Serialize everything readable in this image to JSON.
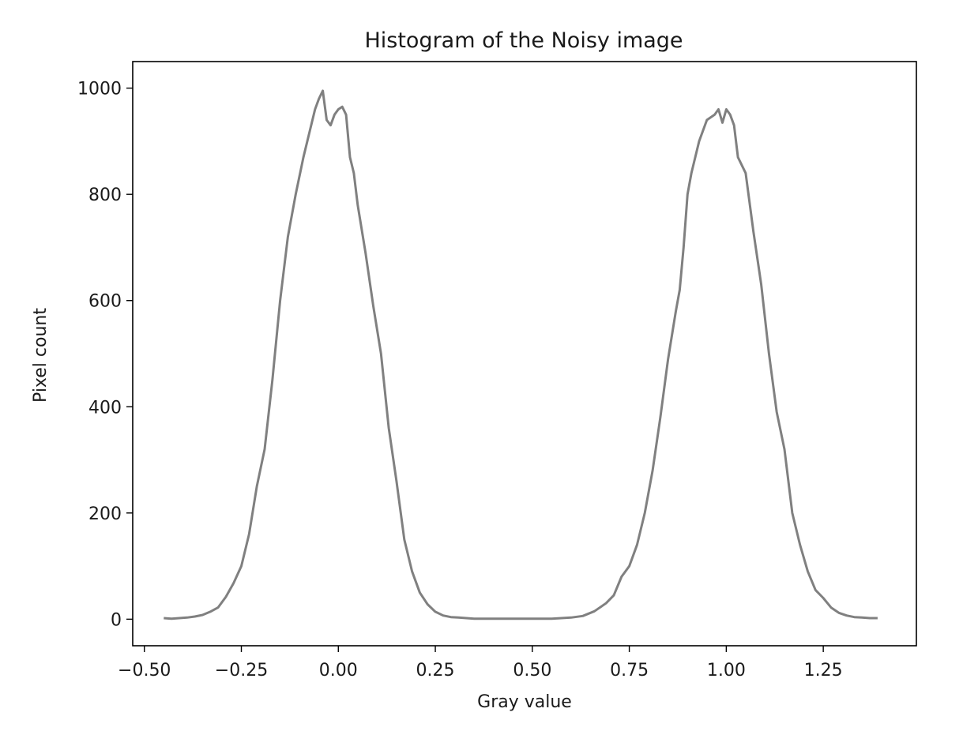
{
  "chart_data": {
    "type": "line",
    "title": "Histogram of the Noisy image",
    "xlabel": "Gray value",
    "ylabel": "Pixel count",
    "xlim": [
      -0.53,
      1.49
    ],
    "ylim": [
      -50,
      1050
    ],
    "grid": false,
    "line_color": "#808080",
    "xticks": [
      -0.5,
      -0.25,
      0.0,
      0.25,
      0.5,
      0.75,
      1.0,
      1.25
    ],
    "xtick_labels": [
      "−0.50",
      "−0.25",
      "0.00",
      "0.25",
      "0.50",
      "0.75",
      "1.00",
      "1.25"
    ],
    "yticks": [
      0,
      200,
      400,
      600,
      800,
      1000
    ],
    "ytick_labels": [
      "0",
      "200",
      "400",
      "600",
      "800",
      "1000"
    ],
    "series": [
      {
        "x": [
          -0.45,
          -0.43,
          -0.41,
          -0.39,
          -0.37,
          -0.35,
          -0.33,
          -0.31,
          -0.29,
          -0.27,
          -0.25,
          -0.23,
          -0.21,
          -0.19,
          -0.17,
          -0.15,
          -0.13,
          -0.11,
          -0.09,
          -0.08,
          -0.07,
          -0.06,
          -0.05,
          -0.04,
          -0.03,
          -0.02,
          -0.01,
          0.0,
          0.01,
          0.02,
          0.03,
          0.04,
          0.05,
          0.07,
          0.09,
          0.11,
          0.13,
          0.15,
          0.17,
          0.19,
          0.21,
          0.23,
          0.25,
          0.27,
          0.29,
          0.31,
          0.35,
          0.4,
          0.45,
          0.5,
          0.55,
          0.6,
          0.63,
          0.66,
          0.69,
          0.71,
          0.73,
          0.75,
          0.77,
          0.79,
          0.81,
          0.83,
          0.85,
          0.87,
          0.88,
          0.89,
          0.9,
          0.91,
          0.93,
          0.95,
          0.97,
          0.98,
          0.99,
          1.0,
          1.01,
          1.02,
          1.03,
          1.05,
          1.07,
          1.09,
          1.11,
          1.13,
          1.15,
          1.17,
          1.19,
          1.21,
          1.23,
          1.25,
          1.27,
          1.29,
          1.31,
          1.33,
          1.35,
          1.37,
          1.39
        ],
        "y": [
          2,
          1,
          2,
          3,
          5,
          8,
          14,
          22,
          42,
          68,
          100,
          160,
          250,
          320,
          450,
          600,
          720,
          800,
          870,
          900,
          930,
          960,
          980,
          995,
          940,
          930,
          950,
          960,
          965,
          950,
          870,
          840,
          780,
          690,
          590,
          500,
          360,
          260,
          150,
          90,
          50,
          28,
          14,
          7,
          4,
          3,
          1,
          1,
          1,
          1,
          1,
          3,
          6,
          15,
          30,
          45,
          80,
          100,
          140,
          200,
          280,
          380,
          490,
          580,
          620,
          700,
          800,
          840,
          900,
          940,
          950,
          960,
          935,
          960,
          950,
          930,
          870,
          840,
          730,
          630,
          500,
          390,
          320,
          200,
          140,
          90,
          55,
          40,
          22,
          12,
          7,
          4,
          3,
          2,
          2
        ]
      }
    ]
  }
}
